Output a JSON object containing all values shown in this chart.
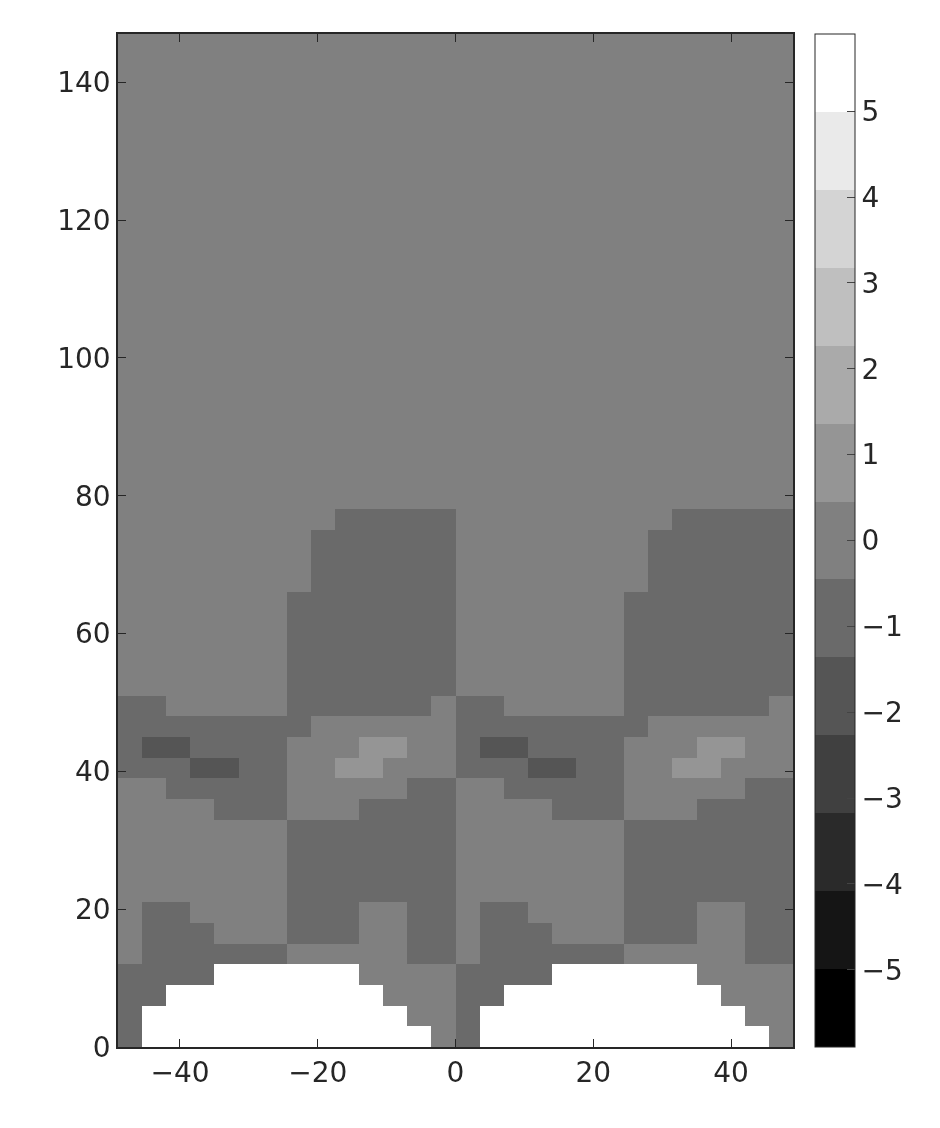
{
  "chart_data": {
    "type": "heatmap",
    "x": [
      -47.25,
      -43.75,
      -40.25,
      -36.75,
      -33.25,
      -29.75,
      -26.25,
      -22.75,
      -19.25,
      -15.75,
      -12.25,
      -8.75,
      -5.25,
      -1.75,
      1.75,
      5.25,
      8.75,
      12.25,
      15.75,
      19.25,
      22.75,
      26.25,
      29.75,
      33.25,
      36.75,
      40.25,
      43.75,
      47.25
    ],
    "cells": [
      [
        0,
        0,
        0,
        0,
        0,
        0,
        0,
        0,
        0,
        0,
        0,
        0,
        0,
        0,
        0,
        0,
        0,
        0,
        0,
        0,
        0,
        0,
        0,
        0,
        0,
        0,
        0,
        0
      ],
      [
        0,
        0,
        0,
        0,
        0,
        0,
        0,
        0,
        0,
        0,
        0,
        0,
        0,
        0,
        0,
        0,
        0,
        0,
        0,
        0,
        0,
        0,
        0,
        0,
        0,
        0,
        0,
        0
      ],
      [
        0,
        0,
        0,
        0,
        0,
        0,
        0,
        0,
        0,
        0,
        0,
        0,
        0,
        0,
        0,
        0,
        0,
        0,
        0,
        0,
        0,
        0,
        0,
        0,
        0,
        0,
        0,
        0
      ],
      [
        0,
        0,
        0,
        0,
        0,
        0,
        0,
        0,
        0,
        0,
        0,
        0,
        0,
        0,
        0,
        0,
        0,
        0,
        0,
        0,
        0,
        0,
        0,
        0,
        0,
        0,
        0,
        0
      ],
      [
        0,
        0,
        0,
        0,
        0,
        0,
        0,
        0,
        0,
        0,
        0,
        0,
        0,
        0,
        0,
        0,
        0,
        0,
        0,
        0,
        0,
        0,
        0,
        0,
        0,
        0,
        0,
        0
      ],
      [
        0,
        0,
        0,
        0,
        0,
        0,
        0,
        0,
        0,
        0,
        0,
        0,
        0,
        0,
        0,
        0,
        0,
        0,
        0,
        0,
        0,
        0,
        0,
        0,
        0,
        0,
        0,
        0
      ],
      [
        0,
        0,
        0,
        0,
        0,
        0,
        0,
        0,
        0,
        0,
        0,
        0,
        0,
        0,
        0,
        0,
        0,
        0,
        0,
        0,
        0,
        0,
        0,
        0,
        0,
        0,
        0,
        0
      ],
      [
        0,
        0,
        0,
        0,
        0,
        0,
        0,
        0,
        0,
        0,
        0,
        0,
        0,
        0,
        0,
        0,
        0,
        0,
        0,
        0,
        0,
        0,
        0,
        0,
        0,
        0,
        0,
        0
      ],
      [
        0,
        0,
        0,
        0,
        0,
        0,
        0,
        0,
        0,
        0,
        0,
        0,
        0,
        0,
        0,
        0,
        0,
        0,
        0,
        0,
        0,
        0,
        0,
        0,
        0,
        0,
        0,
        0
      ],
      [
        0,
        0,
        0,
        0,
        0,
        0,
        0,
        0,
        0,
        0,
        0,
        0,
        0,
        0,
        0,
        0,
        0,
        0,
        0,
        0,
        0,
        0,
        0,
        0,
        0,
        0,
        0,
        0
      ],
      [
        0,
        0,
        0,
        0,
        0,
        0,
        0,
        0,
        0,
        0,
        0,
        0,
        0,
        0,
        0,
        0,
        0,
        0,
        0,
        0,
        0,
        0,
        0,
        0,
        0,
        0,
        0,
        0
      ],
      [
        0,
        0,
        0,
        0,
        0,
        0,
        0,
        0,
        0,
        0,
        0,
        0,
        0,
        0,
        0,
        0,
        0,
        0,
        0,
        0,
        0,
        0,
        0,
        0,
        0,
        0,
        0,
        0
      ],
      [
        0,
        0,
        0,
        0,
        0,
        0,
        0,
        0,
        0,
        0,
        0,
        0,
        0,
        0,
        0,
        0,
        0,
        0,
        0,
        0,
        0,
        0,
        0,
        0,
        0,
        0,
        0,
        0
      ],
      [
        0,
        0,
        0,
        0,
        0,
        0,
        0,
        0,
        0,
        0,
        0,
        0,
        0,
        0,
        0,
        0,
        0,
        0,
        0,
        0,
        0,
        0,
        0,
        0,
        0,
        0,
        0,
        0
      ],
      [
        0,
        0,
        0,
        0,
        0,
        0,
        0,
        0,
        0,
        0,
        0,
        0,
        0,
        0,
        0,
        0,
        0,
        0,
        0,
        0,
        0,
        0,
        0,
        0,
        0,
        0,
        0,
        0
      ],
      [
        0,
        0,
        0,
        0,
        0,
        0,
        0,
        0,
        0,
        0,
        0,
        0,
        0,
        0,
        0,
        0,
        0,
        0,
        0,
        0,
        0,
        0,
        0,
        0,
        0,
        0,
        0,
        0
      ],
      [
        0,
        0,
        0,
        0,
        0,
        0,
        0,
        0,
        0,
        0,
        0,
        0,
        0,
        0,
        0,
        0,
        0,
        0,
        0,
        0,
        0,
        0,
        0,
        0,
        0,
        0,
        0,
        0
      ],
      [
        0,
        0,
        0,
        0,
        0,
        0,
        0,
        0,
        0,
        0,
        0,
        0,
        0,
        0,
        0,
        0,
        0,
        0,
        0,
        0,
        0,
        0,
        0,
        0,
        0,
        0,
        0,
        0
      ],
      [
        0,
        0,
        0,
        0,
        0,
        0,
        0,
        0,
        0,
        0,
        0,
        0,
        0,
        0,
        0,
        0,
        0,
        0,
        0,
        0,
        0,
        0,
        0,
        0,
        0,
        0,
        0,
        0
      ],
      [
        0,
        0,
        0,
        0,
        0,
        0,
        0,
        0,
        0,
        0,
        0,
        0,
        0,
        0,
        0,
        0,
        0,
        0,
        0,
        0,
        0,
        0,
        0,
        0,
        0,
        0,
        0,
        0
      ],
      [
        0,
        0,
        0,
        0,
        0,
        0,
        0,
        0,
        0,
        0,
        0,
        0,
        0,
        0,
        0,
        0,
        0,
        0,
        0,
        0,
        0,
        0,
        0,
        0,
        0,
        0,
        0,
        0
      ],
      [
        0,
        0,
        0,
        0,
        0,
        0,
        0,
        0,
        0,
        0,
        0,
        0,
        0,
        0,
        0,
        0,
        0,
        0,
        0,
        0,
        0,
        0,
        0,
        0,
        0,
        0,
        0,
        0
      ],
      [
        0,
        0,
        0,
        0,
        0,
        0,
        0,
        0,
        0,
        0,
        0,
        0,
        0,
        0,
        0,
        0,
        0,
        0,
        0,
        0,
        0,
        0,
        0,
        0,
        0,
        0,
        0,
        0
      ],
      [
        0,
        0,
        0,
        0,
        0,
        0,
        0,
        0,
        0,
        -0.9,
        -0.9,
        -0.9,
        -0.9,
        -0.9,
        0,
        0,
        0,
        0,
        0,
        0,
        0,
        0,
        0,
        -0.9,
        -0.9,
        -0.9,
        -0.9,
        -0.9
      ],
      [
        0,
        0,
        0,
        0,
        0,
        0,
        0,
        0,
        -0.9,
        -0.9,
        -0.9,
        -0.9,
        -0.9,
        -0.9,
        0,
        0,
        0,
        0,
        0,
        0,
        0,
        0,
        -0.9,
        -0.9,
        -0.9,
        -0.9,
        -0.9,
        -0.9
      ],
      [
        0,
        0,
        0,
        0,
        0,
        0,
        0,
        0,
        -0.9,
        -0.9,
        -0.9,
        -0.9,
        -0.9,
        -0.9,
        0,
        0,
        0,
        0,
        0,
        0,
        0,
        0,
        -0.9,
        -0.9,
        -0.9,
        -0.9,
        -0.9,
        -0.9
      ],
      [
        0,
        0,
        0,
        0,
        0,
        0,
        0,
        0,
        -0.9,
        -0.9,
        -0.9,
        -0.9,
        -0.9,
        -0.9,
        0,
        0,
        0,
        0,
        0,
        0,
        0,
        0,
        -0.9,
        -0.9,
        -0.9,
        -0.9,
        -0.9,
        -0.9
      ],
      [
        0,
        0,
        0,
        0,
        0,
        0,
        0,
        -0.9,
        -0.9,
        -0.9,
        -0.9,
        -0.9,
        -0.9,
        -0.9,
        0,
        0,
        0,
        0,
        0,
        0,
        0,
        -0.9,
        -0.9,
        -0.9,
        -0.9,
        -0.9,
        -0.9,
        -0.9
      ],
      [
        0,
        0,
        0,
        0,
        0,
        0,
        0,
        -0.9,
        -0.9,
        -0.9,
        -0.9,
        -0.9,
        -0.9,
        -0.9,
        0,
        0,
        0,
        0,
        0,
        0,
        0,
        -0.9,
        -0.9,
        -0.9,
        -0.9,
        -0.9,
        -0.9,
        -0.9
      ],
      [
        0,
        0,
        0,
        0,
        0,
        0,
        0,
        -0.9,
        -0.9,
        -0.9,
        -0.9,
        -0.9,
        -0.9,
        -0.9,
        0,
        0,
        0,
        0,
        0,
        0,
        0,
        -0.9,
        -0.9,
        -0.9,
        -0.9,
        -0.9,
        -0.9,
        -0.9
      ],
      [
        0,
        0,
        0,
        0,
        0,
        0,
        0,
        -0.9,
        -0.9,
        -0.9,
        -0.9,
        -0.9,
        -0.9,
        -0.9,
        0,
        0,
        0,
        0,
        0,
        0,
        0,
        -0.9,
        -0.9,
        -0.9,
        -0.9,
        -0.9,
        -0.9,
        -0.9
      ],
      [
        0,
        0,
        0,
        0,
        0,
        0,
        0,
        -0.9,
        -0.9,
        -0.9,
        -0.9,
        -0.9,
        -0.9,
        -0.9,
        0,
        0,
        0,
        0,
        0,
        0,
        0,
        -0.9,
        -0.9,
        -0.9,
        -0.9,
        -0.9,
        -0.9,
        -0.9
      ],
      [
        -0.9,
        -0.9,
        0,
        0,
        0,
        0,
        0,
        -0.9,
        -0.9,
        -0.9,
        -0.9,
        -0.9,
        -0.9,
        0,
        -0.9,
        -0.9,
        0,
        0,
        0,
        0,
        0,
        -0.9,
        -0.9,
        -0.9,
        -0.9,
        -0.9,
        -0.9,
        0
      ],
      [
        -0.9,
        -0.9,
        -0.9,
        -0.9,
        -0.9,
        -0.9,
        -0.9,
        -0.9,
        0,
        0,
        0,
        0,
        0,
        0,
        -0.9,
        -0.9,
        -0.9,
        -0.9,
        -0.9,
        -0.9,
        -0.9,
        -0.9,
        0,
        0,
        0,
        0,
        0,
        0
      ],
      [
        -0.9,
        -1.8,
        -1.8,
        -0.9,
        -0.9,
        -0.9,
        -0.9,
        0,
        0,
        0,
        0.9,
        0.9,
        0,
        0,
        -0.9,
        -1.8,
        -1.8,
        -0.9,
        -0.9,
        -0.9,
        -0.9,
        0,
        0,
        0,
        0.9,
        0.9,
        0,
        0
      ],
      [
        -0.9,
        -0.9,
        -0.9,
        -1.8,
        -1.8,
        -0.9,
        -0.9,
        0,
        0,
        0.9,
        0.9,
        0,
        0,
        0,
        -0.9,
        -0.9,
        -0.9,
        -1.8,
        -1.8,
        -0.9,
        -0.9,
        0,
        0,
        0.9,
        0.9,
        0,
        0,
        0
      ],
      [
        0,
        0,
        -0.9,
        -0.9,
        -0.9,
        -0.9,
        -0.9,
        0,
        0,
        0,
        0,
        0,
        -0.9,
        -0.9,
        0,
        0,
        -0.9,
        -0.9,
        -0.9,
        -0.9,
        -0.9,
        0,
        0,
        0,
        0,
        0,
        -0.9,
        -0.9
      ],
      [
        0,
        0,
        0,
        0,
        -0.9,
        -0.9,
        -0.9,
        0,
        0,
        0,
        -0.9,
        -0.9,
        -0.9,
        -0.9,
        0,
        0,
        0,
        0,
        -0.9,
        -0.9,
        -0.9,
        0,
        0,
        0,
        -0.9,
        -0.9,
        -0.9,
        -0.9
      ],
      [
        0,
        0,
        0,
        0,
        0,
        0,
        0,
        -0.9,
        -0.9,
        -0.9,
        -0.9,
        -0.9,
        -0.9,
        -0.9,
        0,
        0,
        0,
        0,
        0,
        0,
        0,
        -0.9,
        -0.9,
        -0.9,
        -0.9,
        -0.9,
        -0.9,
        -0.9
      ],
      [
        0,
        0,
        0,
        0,
        0,
        0,
        0,
        -0.9,
        -0.9,
        -0.9,
        -0.9,
        -0.9,
        -0.9,
        -0.9,
        0,
        0,
        0,
        0,
        0,
        0,
        0,
        -0.9,
        -0.9,
        -0.9,
        -0.9,
        -0.9,
        -0.9,
        -0.9
      ],
      [
        0,
        0,
        0,
        0,
        0,
        0,
        0,
        -0.9,
        -0.9,
        -0.9,
        -0.9,
        -0.9,
        -0.9,
        -0.9,
        0,
        0,
        0,
        0,
        0,
        0,
        0,
        -0.9,
        -0.9,
        -0.9,
        -0.9,
        -0.9,
        -0.9,
        -0.9
      ],
      [
        0,
        0,
        0,
        0,
        0,
        0,
        0,
        -0.9,
        -0.9,
        -0.9,
        -0.9,
        -0.9,
        -0.9,
        -0.9,
        0,
        0,
        0,
        0,
        0,
        0,
        0,
        -0.9,
        -0.9,
        -0.9,
        -0.9,
        -0.9,
        -0.9,
        -0.9
      ],
      [
        0,
        -0.9,
        -0.9,
        0,
        0,
        0,
        0,
        -0.9,
        -0.9,
        -0.9,
        0,
        0,
        -0.9,
        -0.9,
        0,
        -0.9,
        -0.9,
        0,
        0,
        0,
        0,
        -0.9,
        -0.9,
        -0.9,
        0,
        0,
        -0.9,
        -0.9
      ],
      [
        0,
        -0.9,
        -0.9,
        -0.9,
        0,
        0,
        0,
        -0.9,
        -0.9,
        -0.9,
        0,
        0,
        -0.9,
        -0.9,
        0,
        -0.9,
        -0.9,
        -0.9,
        0,
        0,
        0,
        -0.9,
        -0.9,
        -0.9,
        0,
        0,
        -0.9,
        -0.9
      ],
      [
        0,
        -0.9,
        -0.9,
        -0.9,
        -0.9,
        -0.9,
        -0.9,
        0,
        0,
        0,
        0,
        0,
        -0.9,
        -0.9,
        0,
        -0.9,
        -0.9,
        -0.9,
        -0.9,
        -0.9,
        -0.9,
        0,
        0,
        0,
        0,
        0,
        -0.9,
        -0.9
      ],
      [
        -0.9,
        -0.9,
        -0.9,
        -0.9,
        null,
        null,
        null,
        null,
        null,
        null,
        0,
        0,
        0,
        0,
        -0.9,
        -0.9,
        -0.9,
        -0.9,
        null,
        null,
        null,
        null,
        null,
        null,
        0,
        0,
        0,
        0
      ],
      [
        -0.9,
        -0.9,
        null,
        null,
        null,
        null,
        null,
        null,
        null,
        null,
        null,
        0,
        0,
        0,
        -0.9,
        -0.9,
        null,
        null,
        null,
        null,
        null,
        null,
        null,
        null,
        null,
        0,
        0,
        0
      ],
      [
        -0.9,
        null,
        null,
        null,
        null,
        null,
        null,
        null,
        null,
        null,
        null,
        null,
        0,
        0,
        -0.9,
        null,
        null,
        null,
        null,
        null,
        null,
        null,
        null,
        null,
        null,
        null,
        0,
        0
      ],
      [
        -0.9,
        null,
        null,
        null,
        null,
        null,
        null,
        null,
        null,
        null,
        null,
        null,
        null,
        0,
        -0.9,
        null,
        null,
        null,
        null,
        null,
        null,
        null,
        null,
        null,
        null,
        null,
        null,
        0
      ]
    ],
    "xlim": [
      -49,
      49
    ],
    "ylim": [
      0,
      147
    ],
    "xticks": [
      {
        "value": -40,
        "label": "−40"
      },
      {
        "value": -20,
        "label": "−20"
      },
      0,
      20,
      40
    ],
    "yticks": [
      0,
      20,
      40,
      60,
      80,
      100,
      120,
      140
    ],
    "clim": [
      -5.9,
      5.9
    ],
    "cticks": [
      {
        "value": -5,
        "label": "−5"
      },
      {
        "value": -4,
        "label": "−4"
      },
      {
        "value": -3,
        "label": "−3"
      },
      {
        "value": -2,
        "label": "−2"
      },
      {
        "value": -1,
        "label": "−1"
      },
      0,
      1,
      2,
      3,
      4,
      5
    ]
  }
}
